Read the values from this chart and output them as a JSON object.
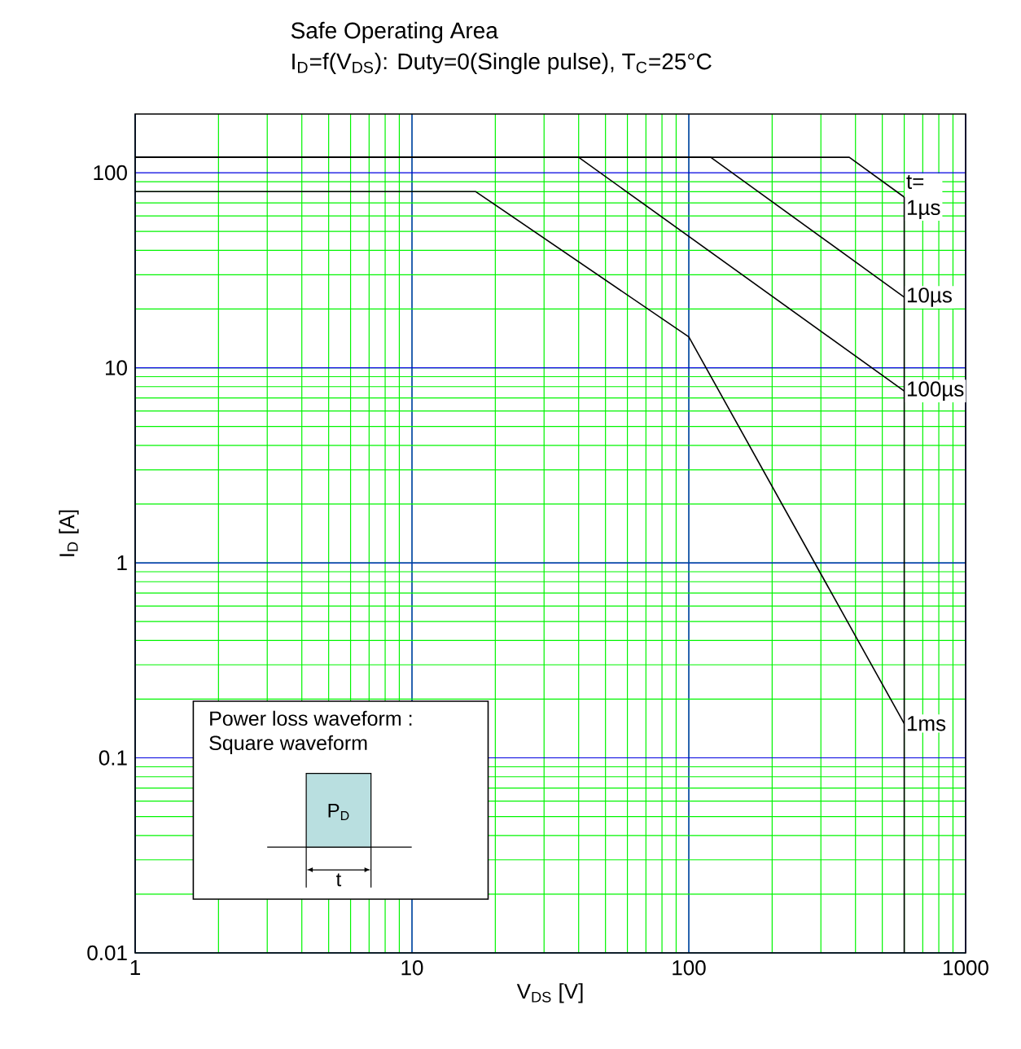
{
  "chart_data": {
    "type": "line",
    "title": "Safe Operating Area",
    "subtitle": "I$_{D}$=f(V$_{DS}$): Duty=0(Single pulse), T$_{C}$=25°C",
    "xlabel": "V$_{DS}$ [V]",
    "ylabel": "I$_{D}$ [A]",
    "log": "xy",
    "grid": true,
    "legend": false,
    "marker": "none",
    "line_style": "solid",
    "xlim": [
      1,
      1000
    ],
    "ylim": [
      0.01,
      200
    ],
    "xticks": [
      1,
      10,
      100,
      1000
    ],
    "yticks": [
      0.01,
      0.1,
      1,
      10,
      100
    ],
    "series": [
      {
        "name": "1µs",
        "color": "#000000",
        "x": [
          1,
          380,
          600
        ],
        "values": [
          120,
          120,
          75
        ]
      },
      {
        "name": "10µs",
        "color": "#000000",
        "x": [
          1,
          120,
          600
        ],
        "values": [
          120,
          120,
          23
        ]
      },
      {
        "name": "100µs",
        "color": "#000000",
        "x": [
          1,
          40,
          600
        ],
        "values": [
          120,
          120,
          7.6
        ]
      },
      {
        "name": "1ms",
        "color": "#000000",
        "x": [
          1,
          17,
          100,
          600
        ],
        "values": [
          80,
          80,
          14.4,
          0.15
        ]
      },
      {
        "color": "#000000",
        "x": [
          600,
          600
        ],
        "values": [
          0.01,
          75
        ]
      }
    ],
    "annotations": [
      "t=",
      "Power loss waveform :",
      "Square waveform",
      "P$_{D}$",
      "t"
    ]
  }
}
